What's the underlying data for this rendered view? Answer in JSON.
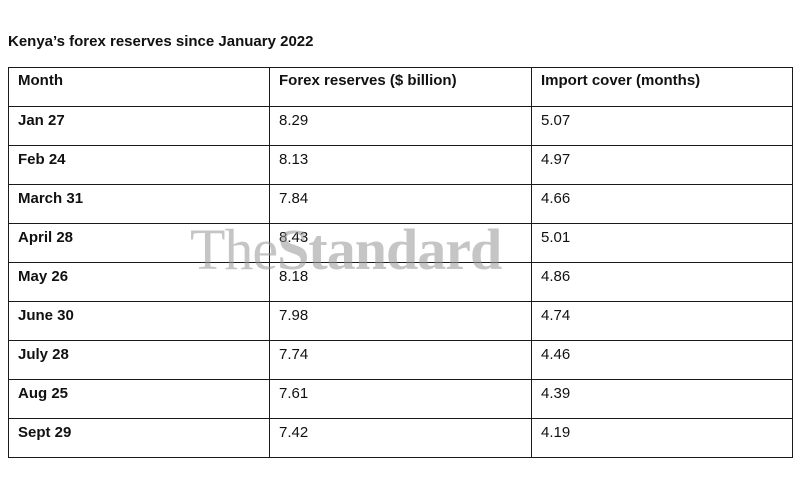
{
  "title": "Kenya’s forex reserves since January 2022",
  "table": {
    "headers": [
      "Month",
      "Forex reserves ($ billion)",
      "Import cover (months)"
    ],
    "rows": [
      [
        "Jan 27",
        "8.29",
        "5.07"
      ],
      [
        "Feb 24",
        "8.13",
        "4.97"
      ],
      [
        "March 31",
        "7.84",
        "4.66"
      ],
      [
        "April 28",
        "8.43",
        "5.01"
      ],
      [
        "May 26",
        "8.18",
        "4.86"
      ],
      [
        "June 30",
        "7.98",
        "4.74"
      ],
      [
        "July 28",
        "7.74",
        "4.46"
      ],
      [
        "Aug 25",
        "7.61",
        "4.39"
      ],
      [
        "Sept 29",
        "7.42",
        "4.19"
      ]
    ]
  },
  "watermark": {
    "part1": "The",
    "part2": "Standard"
  },
  "colors": {
    "border": "#1a1a1a",
    "watermark": "#969696"
  }
}
